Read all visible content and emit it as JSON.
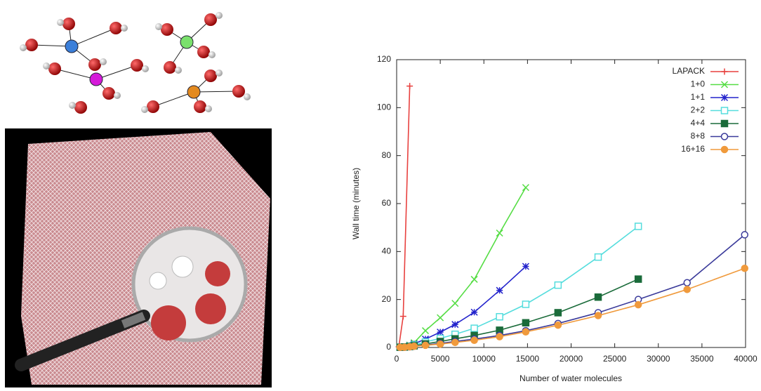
{
  "chart_data": {
    "type": "line",
    "xlabel": "Number of water molecules",
    "ylabel": "Wall time (minutes)",
    "xlim": [
      0,
      40000
    ],
    "xticks": [
      0,
      5000,
      10000,
      15000,
      20000,
      25000,
      30000,
      35000,
      40000
    ],
    "ylim": [
      0,
      120
    ],
    "yticks": [
      0,
      20,
      40,
      60,
      80,
      100,
      120
    ],
    "legend": "upper right",
    "series": [
      {
        "name": "LAPACK",
        "color": "#e8413f",
        "marker": "plus",
        "x": [
          250,
          750,
          1500
        ],
        "values": [
          0.3,
          13,
          109
        ]
      },
      {
        "name": "1+0",
        "color": "#55dd44",
        "marker": "cross",
        "x": [
          400,
          900,
          1500,
          2000,
          3300,
          5000,
          6700,
          8900,
          11800,
          14800
        ],
        "values": [
          0.1,
          0.3,
          1,
          2,
          7,
          12.4,
          18.4,
          28.4,
          47.7,
          66.7
        ]
      },
      {
        "name": "1+1",
        "color": "#2323cc",
        "marker": "star",
        "x": [
          400,
          900,
          1500,
          2000,
          3300,
          5000,
          6700,
          8900,
          11800,
          14800
        ],
        "values": [
          0.1,
          0.3,
          0.8,
          1.5,
          3.5,
          6.4,
          9.6,
          14.7,
          23.8,
          33.8
        ]
      },
      {
        "name": "2+2",
        "color": "#55dddd",
        "marker": "square",
        "x": [
          400,
          900,
          1500,
          2000,
          3300,
          5000,
          6700,
          8900,
          11800,
          14800,
          18500,
          23100,
          27700
        ],
        "values": [
          0.1,
          0.2,
          0.5,
          1,
          2.3,
          3.8,
          5.5,
          8,
          12.8,
          18,
          26,
          37.7,
          50.5
        ]
      },
      {
        "name": "4+4",
        "color": "#1a6b3a",
        "marker": "filled-square",
        "x": [
          400,
          900,
          1500,
          2000,
          3300,
          5000,
          6700,
          8900,
          11800,
          14800,
          18500,
          23100,
          27700
        ],
        "values": [
          0.1,
          0.2,
          0.4,
          0.7,
          1.5,
          2.5,
          3.6,
          5,
          7.2,
          10.3,
          14.5,
          21,
          28.5
        ]
      },
      {
        "name": "8+8",
        "color": "#3a3a9a",
        "marker": "circle",
        "x": [
          400,
          900,
          1500,
          2000,
          3300,
          5000,
          6700,
          8900,
          11800,
          14800,
          18500,
          23100,
          27700,
          33300,
          39900
        ],
        "values": [
          0.05,
          0.1,
          0.3,
          0.5,
          1,
          1.7,
          2.5,
          3.5,
          5,
          7,
          10,
          14.5,
          20,
          27,
          47
        ]
      },
      {
        "name": "16+16",
        "color": "#f09a3c",
        "marker": "filled-circle",
        "x": [
          400,
          900,
          1500,
          2000,
          3300,
          5000,
          6700,
          8900,
          11800,
          14800,
          18500,
          23100,
          27700,
          33300,
          39900
        ],
        "values": [
          0.05,
          0.1,
          0.3,
          0.5,
          0.9,
          1.4,
          2.1,
          3,
          4.5,
          6.5,
          9.3,
          13.3,
          17.8,
          24.2,
          33
        ]
      }
    ]
  }
}
